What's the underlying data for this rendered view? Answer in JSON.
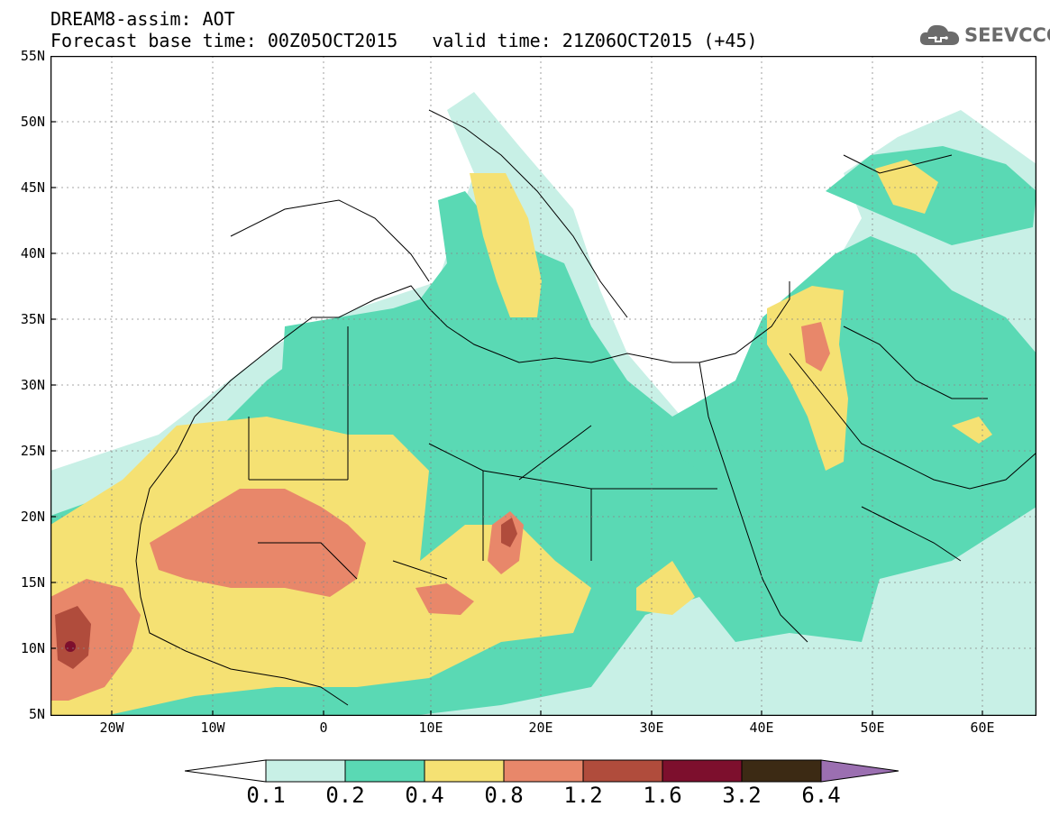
{
  "header": {
    "title": "DREAM8-assim: AOT",
    "base_time": "Forecast base time: 00Z05OCT2015",
    "valid_time": "valid time: 21Z06OCT2015 (+45)"
  },
  "logo": {
    "text": "SEEVCCC",
    "icon": "cloud-icon",
    "color": "#6b6b6b"
  },
  "axes": {
    "lat_labels": [
      "55N",
      "50N",
      "45N",
      "40N",
      "35N",
      "30N",
      "25N",
      "20N",
      "15N",
      "10N",
      "5N"
    ],
    "lon_labels": [
      "20W",
      "10W",
      "0",
      "10E",
      "20E",
      "30E",
      "40E",
      "50E",
      "60E"
    ]
  },
  "colorbar": {
    "labels": [
      "0.1",
      "0.2",
      "0.4",
      "0.8",
      "1.2",
      "1.6",
      "3.2",
      "6.4"
    ],
    "colors": [
      "#ffffff",
      "#c8f0e6",
      "#5ad9b4",
      "#f5e173",
      "#e8876a",
      "#b04c3c",
      "#7d0f2d",
      "#3c2a14",
      "#9b6fb1"
    ]
  },
  "map_colors": {
    "c1": "#c8f0e6",
    "c2": "#5ad9b4",
    "c3": "#f5e173",
    "c4": "#e8876a",
    "c5": "#b04c3c",
    "c6": "#7d0f2d"
  }
}
